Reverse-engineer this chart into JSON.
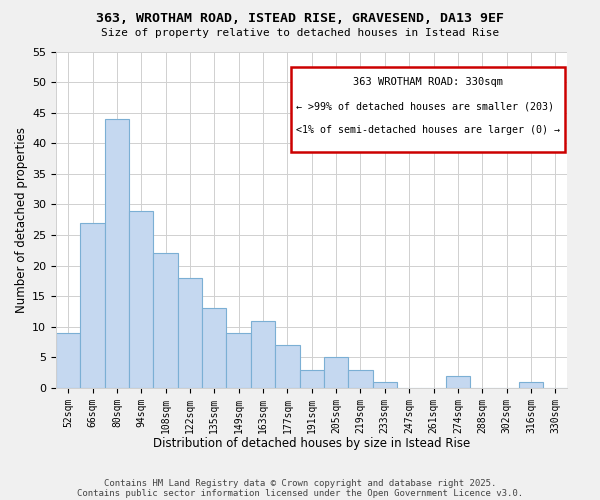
{
  "title": "363, WROTHAM ROAD, ISTEAD RISE, GRAVESEND, DA13 9EF",
  "subtitle": "Size of property relative to detached houses in Istead Rise",
  "xlabel": "Distribution of detached houses by size in Istead Rise",
  "ylabel": "Number of detached properties",
  "bar_labels": [
    "52sqm",
    "66sqm",
    "80sqm",
    "94sqm",
    "108sqm",
    "122sqm",
    "135sqm",
    "149sqm",
    "163sqm",
    "177sqm",
    "191sqm",
    "205sqm",
    "219sqm",
    "233sqm",
    "247sqm",
    "261sqm",
    "274sqm",
    "288sqm",
    "302sqm",
    "316sqm",
    "330sqm"
  ],
  "bar_values": [
    9,
    27,
    44,
    29,
    22,
    18,
    13,
    9,
    11,
    7,
    3,
    5,
    3,
    1,
    0,
    0,
    2,
    0,
    0,
    1,
    0
  ],
  "bar_color": "#c5d8f0",
  "bar_edge_color": "#7bafd4",
  "highlight_index": 20,
  "annotation_box_edge": "#cc0000",
  "annotation_title": "363 WROTHAM ROAD: 330sqm",
  "annotation_line1": "← >99% of detached houses are smaller (203)",
  "annotation_line2": "<1% of semi-detached houses are larger (0) →",
  "ylim": [
    0,
    55
  ],
  "yticks": [
    0,
    5,
    10,
    15,
    20,
    25,
    30,
    35,
    40,
    45,
    50,
    55
  ],
  "footer1": "Contains HM Land Registry data © Crown copyright and database right 2025.",
  "footer2": "Contains public sector information licensed under the Open Government Licence v3.0.",
  "bg_color": "#f0f0f0",
  "plot_bg_color": "#ffffff",
  "grid_color": "#d0d0d0"
}
